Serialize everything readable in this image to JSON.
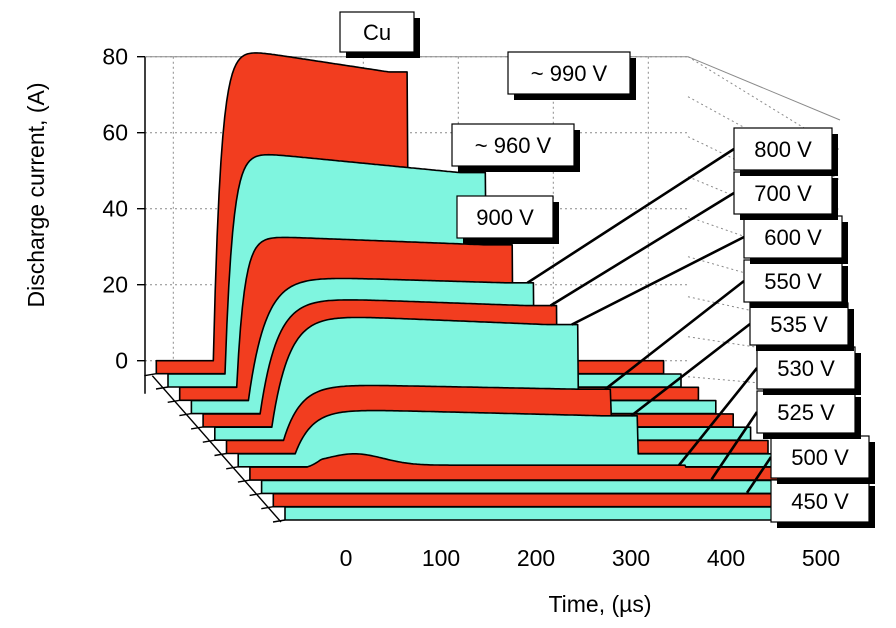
{
  "chart_data": {
    "type": "area",
    "style": "3d-waterfall",
    "title": "Cu",
    "xlabel": "Time, (µs)",
    "ylabel": "Discharge current, (A)",
    "x_ticks": [
      0,
      100,
      200,
      300,
      400,
      500
    ],
    "y_ticks": [
      0,
      20,
      40,
      60,
      80
    ],
    "xlim": [
      -60,
      520
    ],
    "ylim": [
      0,
      80
    ],
    "colors": {
      "red": "#f23d1f",
      "cyan": "#7ff5df",
      "outline": "#000000",
      "grid": "#8a8a8a"
    },
    "series": [
      {
        "name": "450 V",
        "color": "cyan",
        "pulse_end": 470,
        "rise": 0,
        "peak": 0,
        "plateau": 0,
        "bump": 0
      },
      {
        "name": "500 V",
        "color": "red",
        "pulse_end": 445,
        "rise": 0,
        "peak": 0,
        "plateau": 0,
        "bump": 0
      },
      {
        "name": "525 V",
        "color": "cyan",
        "pulse_end": 420,
        "rise": 0,
        "peak": 0,
        "plateau": 0,
        "bump": 0
      },
      {
        "name": "530 V",
        "color": "red",
        "pulse_end": 398,
        "rise": 30,
        "peak": 3,
        "plateau": 0.5,
        "bump": 1
      },
      {
        "name": "535 V",
        "color": "cyan",
        "pulse_end": 360,
        "rise": 10,
        "peak": 12,
        "plateau": 10,
        "bump": 0
      },
      {
        "name": "550 V",
        "color": "red",
        "pulse_end": 345,
        "rise": 7,
        "peak": 15,
        "plateau": 13.5,
        "bump": 0
      },
      {
        "name": "600 V",
        "color": "cyan",
        "pulse_end": 322,
        "rise": 6,
        "peak": 30,
        "plateau": 27,
        "bump": 0
      },
      {
        "name": "700 V",
        "color": "red",
        "pulse_end": 312,
        "rise": 4,
        "peak": 31,
        "plateau": 28.5,
        "bump": 0
      },
      {
        "name": "800 V",
        "color": "cyan",
        "pulse_end": 300,
        "rise": 3,
        "peak": 33,
        "plateau": 31,
        "bump": 0
      },
      {
        "name": "900 V",
        "color": "red",
        "pulse_end": 290,
        "rise": 2,
        "peak": 40,
        "plateau": 37.5,
        "bump": 0
      },
      {
        "name": "~ 960 V",
        "color": "cyan",
        "pulse_end": 275,
        "rise": 2,
        "peak": 59,
        "plateau": 53,
        "bump": 0
      },
      {
        "name": "~ 990 V",
        "color": "red",
        "pulse_end": 205,
        "rise": 2,
        "peak": 83,
        "plateau": 76,
        "bump": 0
      }
    ]
  }
}
